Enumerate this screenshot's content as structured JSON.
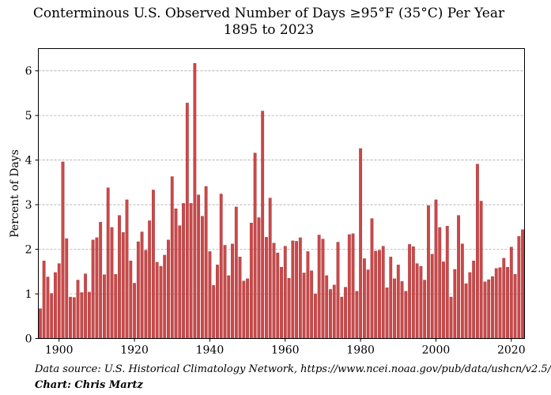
{
  "title_line1": "Conterminous U.S. Observed Number of Days ≥95°F (35°C) Per Year",
  "title_line2": "1895 to 2023",
  "source_note": "Data source: U.S. Historical Climatology Network, https://www.ncei.noaa.gov/pub/data/ushcn/v2.5/",
  "credit_note": "Chart: Chris Martz",
  "colors": {
    "bar": "#c9494a",
    "bar_edge": "#a53233",
    "grid": "#9a9a9a"
  },
  "chart_data": {
    "type": "bar",
    "title": "Conterminous U.S. Observed Number of Days ≥95°F (35°C) Per Year",
    "subtitle": "1895 to 2023",
    "xlabel": "",
    "ylabel": "Percent of Days",
    "xlim": [
      1894.5,
      2023.5
    ],
    "ylim": [
      0,
      6.5
    ],
    "x_ticks": [
      1900,
      1920,
      1940,
      1960,
      1980,
      2000,
      2020
    ],
    "y_ticks": [
      0,
      1,
      2,
      3,
      4,
      5,
      6
    ],
    "grid": "horizontal dashed",
    "series": [
      {
        "name": "Percent of Days",
        "start_year": 1895,
        "values": [
          0.67,
          1.74,
          1.38,
          1.01,
          1.48,
          1.68,
          3.96,
          2.24,
          0.93,
          0.92,
          1.31,
          1.03,
          1.45,
          1.04,
          2.21,
          2.26,
          2.61,
          1.43,
          3.38,
          2.49,
          1.44,
          2.76,
          2.38,
          3.11,
          1.74,
          1.24,
          2.17,
          2.39,
          1.98,
          2.64,
          3.33,
          1.71,
          1.62,
          1.87,
          2.21,
          3.63,
          2.91,
          2.53,
          3.03,
          5.28,
          3.03,
          6.17,
          3.22,
          2.74,
          3.41,
          1.95,
          1.19,
          1.65,
          3.24,
          2.09,
          1.41,
          2.12,
          2.95,
          1.83,
          1.29,
          1.34,
          2.59,
          4.16,
          2.71,
          5.1,
          2.27,
          3.15,
          2.14,
          1.92,
          1.6,
          2.07,
          1.35,
          2.19,
          2.18,
          2.26,
          1.47,
          1.95,
          1.52,
          1.0,
          2.32,
          2.23,
          1.41,
          1.1,
          1.2,
          2.16,
          0.93,
          1.15,
          2.33,
          2.35,
          1.06,
          4.26,
          1.79,
          1.54,
          2.69,
          1.96,
          1.98,
          2.07,
          1.14,
          1.83,
          1.34,
          1.65,
          1.28,
          1.06,
          2.11,
          2.06,
          1.68,
          1.62,
          1.31,
          2.98,
          1.89,
          3.11,
          2.49,
          1.72,
          2.52,
          0.93,
          1.55,
          2.76,
          2.12,
          1.23,
          1.48,
          1.74,
          3.91,
          3.08,
          1.27,
          1.32,
          1.39,
          1.57,
          1.59,
          1.8,
          1.6,
          2.05,
          1.44,
          2.29,
          2.44
        ]
      }
    ]
  }
}
